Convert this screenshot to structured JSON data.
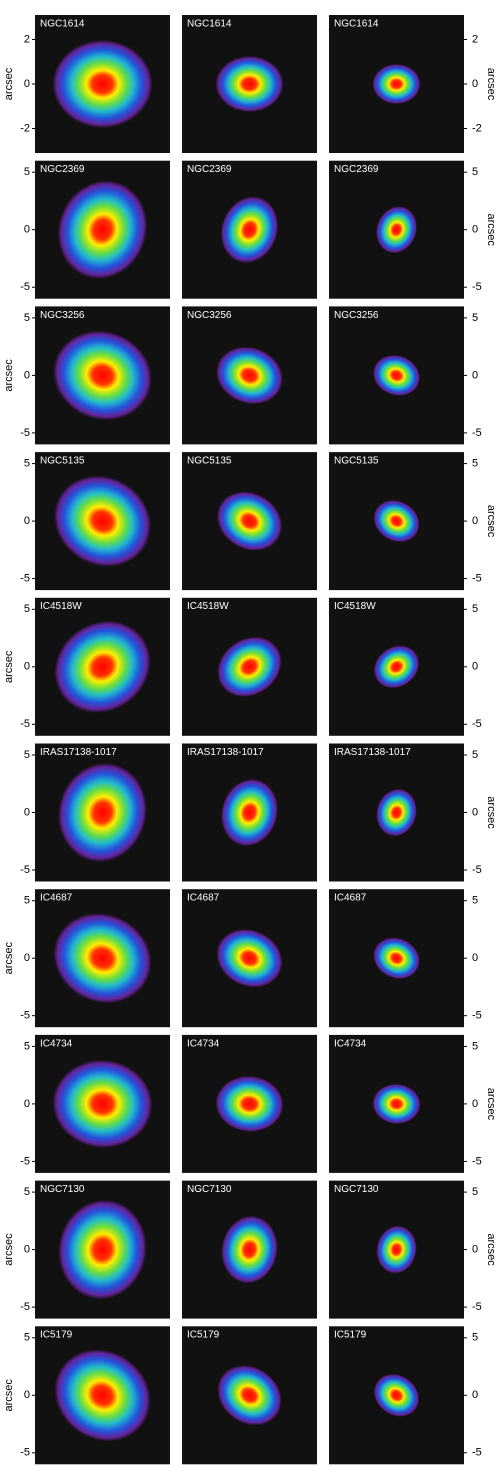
{
  "rows": [
    {
      "panels": [
        "NGC1614",
        "NGC1614",
        "NGC1614"
      ],
      "ylim": [
        -3.1,
        3.1
      ],
      "yticks": [
        2,
        0,
        -2
      ],
      "ylabel": "arcsec",
      "ylabel_side": "both"
    },
    {
      "panels": [
        "NGC2369",
        "NGC2369",
        "NGC2369"
      ],
      "ylim": [
        -6,
        6
      ],
      "yticks": [
        5,
        0,
        -5
      ],
      "ylabel": "arcsec",
      "ylabel_side": "right"
    },
    {
      "panels": [
        "NGC3256",
        "NGC3256",
        "NGC3256"
      ],
      "ylim": [
        -6,
        6
      ],
      "yticks": [
        5,
        0,
        -5
      ],
      "ylabel": "arcsec",
      "ylabel_side": "left"
    },
    {
      "panels": [
        "NGC5135",
        "NGC5135",
        "NGC5135"
      ],
      "ylim": [
        -6,
        6
      ],
      "yticks": [
        5,
        0,
        -5
      ],
      "ylabel": "arcsec",
      "ylabel_side": "right"
    },
    {
      "panels": [
        "IC4518W",
        "IC4518W",
        "IC4518W"
      ],
      "ylim": [
        -6,
        6
      ],
      "yticks": [
        5,
        0,
        -5
      ],
      "ylabel": "arcsec",
      "ylabel_side": "left"
    },
    {
      "panels": [
        "IRAS17138-1017",
        "IRAS17138-1017",
        "IRAS17138-1017"
      ],
      "ylim": [
        -6,
        6
      ],
      "yticks": [
        5,
        0,
        -5
      ],
      "ylabel": "arcsec",
      "ylabel_side": "right"
    },
    {
      "panels": [
        "IC4687",
        "IC4687",
        "IC4687"
      ],
      "ylim": [
        -6,
        6
      ],
      "yticks": [
        5,
        0,
        -5
      ],
      "ylabel": "arcsec",
      "ylabel_side": "left"
    },
    {
      "panels": [
        "IC4734",
        "IC4734",
        "IC4734"
      ],
      "ylim": [
        -6,
        6
      ],
      "yticks": [
        5,
        0,
        -5
      ],
      "ylabel": "arcsec",
      "ylabel_side": "right"
    },
    {
      "panels": [
        "NGC7130",
        "NGC7130",
        "NGC7130"
      ],
      "ylim": [
        -6,
        6
      ],
      "yticks": [
        5,
        0,
        -5
      ],
      "ylabel": "arcsec",
      "ylabel_side": "both"
    },
    {
      "panels": [
        "IC5179",
        "IC5179",
        "IC5179"
      ],
      "ylim": [
        -6,
        6
      ],
      "yticks": [
        5,
        0,
        -5
      ],
      "ylabel": "arcsec",
      "ylabel_side": "left"
    }
  ]
}
